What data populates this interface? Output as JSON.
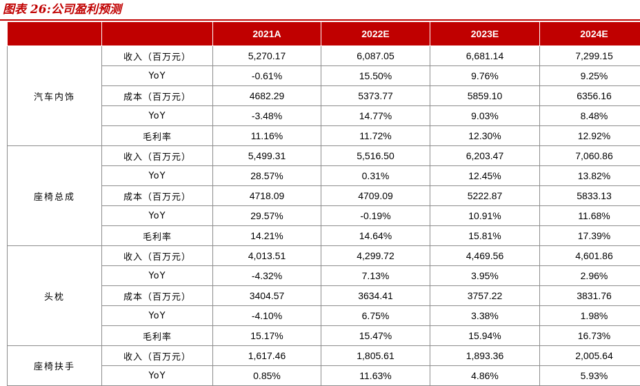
{
  "caption": "图表 26:公司盈利预测",
  "columns": [
    "",
    "",
    "2021A",
    "2022E",
    "2023E",
    "2024E"
  ],
  "groups": [
    {
      "name": "汽车内饰",
      "rows": [
        {
          "metric": "收入（百万元）",
          "values": [
            "5,270.17",
            "6,087.05",
            "6,681.14",
            "7,299.15"
          ]
        },
        {
          "metric": "YoY",
          "values": [
            "-0.61%",
            "15.50%",
            "9.76%",
            "9.25%"
          ]
        },
        {
          "metric": "成本（百万元）",
          "values": [
            "4682.29",
            "5373.77",
            "5859.10",
            "6356.16"
          ]
        },
        {
          "metric": "YoY",
          "values": [
            "-3.48%",
            "14.77%",
            "9.03%",
            "8.48%"
          ]
        },
        {
          "metric": "毛利率",
          "values": [
            "11.16%",
            "11.72%",
            "12.30%",
            "12.92%"
          ]
        }
      ]
    },
    {
      "name": "座椅总成",
      "rows": [
        {
          "metric": "收入（百万元）",
          "values": [
            "5,499.31",
            "5,516.50",
            "6,203.47",
            "7,060.86"
          ]
        },
        {
          "metric": "YoY",
          "values": [
            "28.57%",
            "0.31%",
            "12.45%",
            "13.82%"
          ]
        },
        {
          "metric": "成本（百万元）",
          "values": [
            "4718.09",
            "4709.09",
            "5222.87",
            "5833.13"
          ]
        },
        {
          "metric": "YoY",
          "values": [
            "29.57%",
            "-0.19%",
            "10.91%",
            "11.68%"
          ]
        },
        {
          "metric": "毛利率",
          "values": [
            "14.21%",
            "14.64%",
            "15.81%",
            "17.39%"
          ]
        }
      ]
    },
    {
      "name": "头枕",
      "rows": [
        {
          "metric": "收入（百万元）",
          "values": [
            "4,013.51",
            "4,299.72",
            "4,469.56",
            "4,601.86"
          ]
        },
        {
          "metric": "YoY",
          "values": [
            "-4.32%",
            "7.13%",
            "3.95%",
            "2.96%"
          ]
        },
        {
          "metric": "成本（百万元）",
          "values": [
            "3404.57",
            "3634.41",
            "3757.22",
            "3831.76"
          ]
        },
        {
          "metric": "YoY",
          "values": [
            "-4.10%",
            "6.75%",
            "3.38%",
            "1.98%"
          ]
        },
        {
          "metric": "毛利率",
          "values": [
            "15.17%",
            "15.47%",
            "15.94%",
            "16.73%"
          ]
        }
      ]
    },
    {
      "name": "座椅扶手",
      "rows": [
        {
          "metric": "收入（百万元）",
          "values": [
            "1,617.46",
            "1,805.61",
            "1,893.36",
            "2,005.64"
          ]
        },
        {
          "metric": "YoY",
          "values": [
            "0.85%",
            "11.63%",
            "4.86%",
            "5.93%"
          ]
        }
      ]
    }
  ]
}
